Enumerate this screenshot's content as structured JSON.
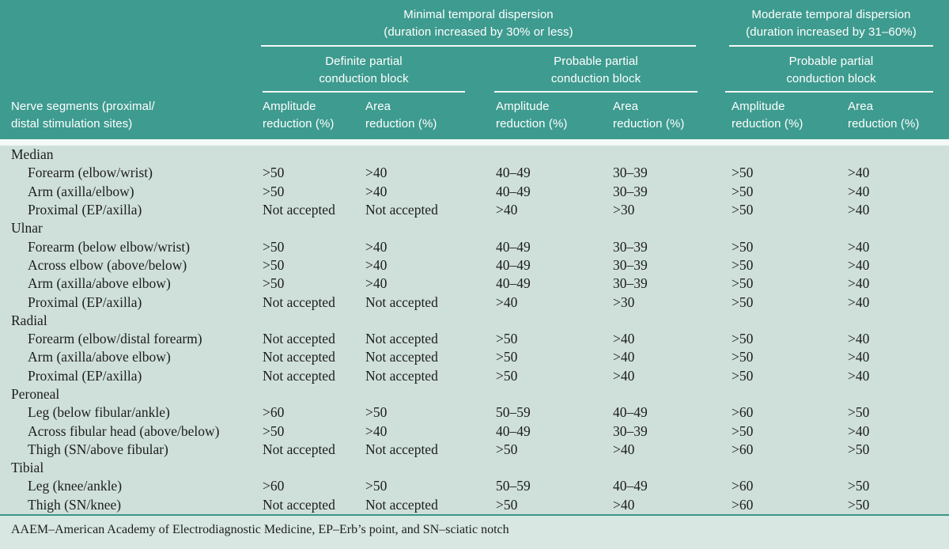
{
  "colors": {
    "header_teal": "#3E9B8F",
    "body_mint": "#CFE0DB",
    "footer_mint": "#D8E7E2",
    "rule_white": "#F2F7F6",
    "rule_teal": "#3A958A",
    "header_text": "#FFFFFF",
    "body_text": "#1D1D1D"
  },
  "table": {
    "row_header": {
      "line1": "Nerve segments (proximal/",
      "line2": "distal stimulation sites)"
    },
    "groups": [
      {
        "line1": "Minimal temporal dispersion",
        "line2": "(duration increased by 30% or less)"
      },
      {
        "line1": "Moderate temporal dispersion",
        "line2": "(duration increased by 31–60%)"
      }
    ],
    "subgroups": [
      {
        "line1": "Definite partial",
        "line2": "conduction block"
      },
      {
        "line1": "Probable partial",
        "line2": "conduction block"
      },
      {
        "line1": "Probable partial",
        "line2": "conduction block"
      }
    ],
    "col_headers": [
      {
        "line1": "Amplitude",
        "line2": "reduction (%)"
      },
      {
        "line1": "Area",
        "line2": "reduction (%)"
      },
      {
        "line1": "Amplitude",
        "line2": "reduction (%)"
      },
      {
        "line1": "Area",
        "line2": "reduction (%)"
      },
      {
        "line1": "Amplitude",
        "line2": "reduction (%)"
      },
      {
        "line1": "Area",
        "line2": "reduction (%)"
      }
    ],
    "sections": [
      {
        "name": "Median",
        "rows": [
          {
            "label": "Forearm (elbow/wrist)",
            "values": [
              ">50",
              ">40",
              "40–49",
              "30–39",
              ">50",
              ">40"
            ]
          },
          {
            "label": "Arm (axilla/elbow)",
            "values": [
              ">50",
              ">40",
              "40–49",
              "30–39",
              ">50",
              ">40"
            ]
          },
          {
            "label": "Proximal (EP/axilla)",
            "values": [
              "Not accepted",
              "Not accepted",
              ">40",
              ">30",
              ">50",
              ">40"
            ]
          }
        ]
      },
      {
        "name": "Ulnar",
        "rows": [
          {
            "label": "Forearm (below elbow/wrist)",
            "values": [
              ">50",
              ">40",
              "40–49",
              "30–39",
              ">50",
              ">40"
            ]
          },
          {
            "label": "Across elbow (above/below)",
            "values": [
              ">50",
              ">40",
              "40–49",
              "30–39",
              ">50",
              ">40"
            ]
          },
          {
            "label": "Arm (axilla/above elbow)",
            "values": [
              ">50",
              ">40",
              "40–49",
              "30–39",
              ">50",
              ">40"
            ]
          },
          {
            "label": "Proximal (EP/axilla)",
            "values": [
              "Not accepted",
              "Not accepted",
              ">40",
              ">30",
              ">50",
              ">40"
            ]
          }
        ]
      },
      {
        "name": "Radial",
        "rows": [
          {
            "label": "Forearm (elbow/distal forearm)",
            "values": [
              "Not accepted",
              "Not accepted",
              ">50",
              ">40",
              ">50",
              ">40"
            ]
          },
          {
            "label": "Arm (axilla/above elbow)",
            "values": [
              "Not accepted",
              "Not accepted",
              ">50",
              ">40",
              ">50",
              ">40"
            ]
          },
          {
            "label": "Proximal (EP/axilla)",
            "values": [
              "Not accepted",
              "Not accepted",
              ">50",
              ">40",
              ">50",
              ">40"
            ]
          }
        ]
      },
      {
        "name": "Peroneal",
        "rows": [
          {
            "label": "Leg (below fibular/ankle)",
            "values": [
              ">60",
              ">50",
              "50–59",
              "40–49",
              ">60",
              ">50"
            ]
          },
          {
            "label": "Across fibular head (above/below)",
            "values": [
              ">50",
              ">40",
              "40–49",
              "30–39",
              ">50",
              ">40"
            ]
          },
          {
            "label": "Thigh (SN/above fibular)",
            "values": [
              "Not accepted",
              "Not accepted",
              ">50",
              ">40",
              ">60",
              ">50"
            ]
          }
        ]
      },
      {
        "name": "Tibial",
        "rows": [
          {
            "label": "Leg (knee/ankle)",
            "values": [
              ">60",
              ">50",
              "50–59",
              "40–49",
              ">60",
              ">50"
            ]
          },
          {
            "label": "Thigh (SN/knee)",
            "values": [
              "Not accepted",
              "Not accepted",
              ">50",
              ">40",
              ">60",
              ">50"
            ]
          }
        ]
      }
    ],
    "footnote": "AAEM–American Academy of Electrodiagnostic Medicine, EP–Erb’s point, and SN–sciatic notch"
  }
}
